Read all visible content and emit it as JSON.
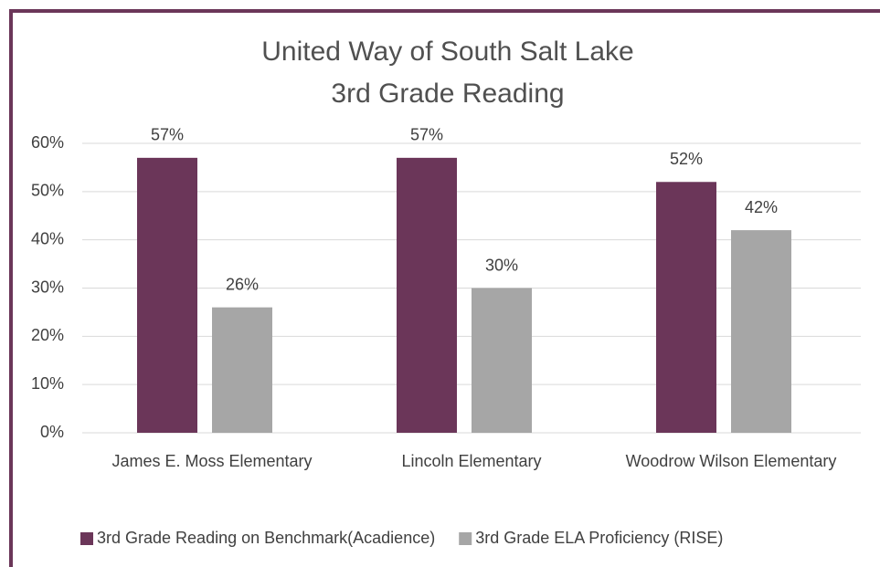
{
  "chart_data": {
    "type": "bar",
    "title": "United Way of South Salt Lake",
    "subtitle": "3rd Grade Reading",
    "categories": [
      "James E. Moss Elementary",
      "Lincoln Elementary",
      "Woodrow Wilson Elementary"
    ],
    "series": [
      {
        "name": "3rd Grade Reading on Benchmark(Acadience)",
        "color": "#6b3659",
        "values": [
          57,
          57,
          52
        ],
        "value_labels": [
          "57%",
          "57%",
          "52%"
        ]
      },
      {
        "name": "3rd Grade ELA Proficiency (RISE)",
        "color": "#a6a6a6",
        "values": [
          26,
          30,
          42
        ],
        "value_labels": [
          "26%",
          "30%",
          "42%"
        ]
      }
    ],
    "ylim": [
      0,
      60
    ],
    "yticks": [
      {
        "value": 0,
        "label": "0%"
      },
      {
        "value": 10,
        "label": "10%"
      },
      {
        "value": 20,
        "label": "20%"
      },
      {
        "value": 30,
        "label": "30%"
      },
      {
        "value": 40,
        "label": "40%"
      },
      {
        "value": 50,
        "label": "50%"
      },
      {
        "value": 60,
        "label": "60%"
      }
    ],
    "grid": true,
    "legend": "bottom"
  }
}
